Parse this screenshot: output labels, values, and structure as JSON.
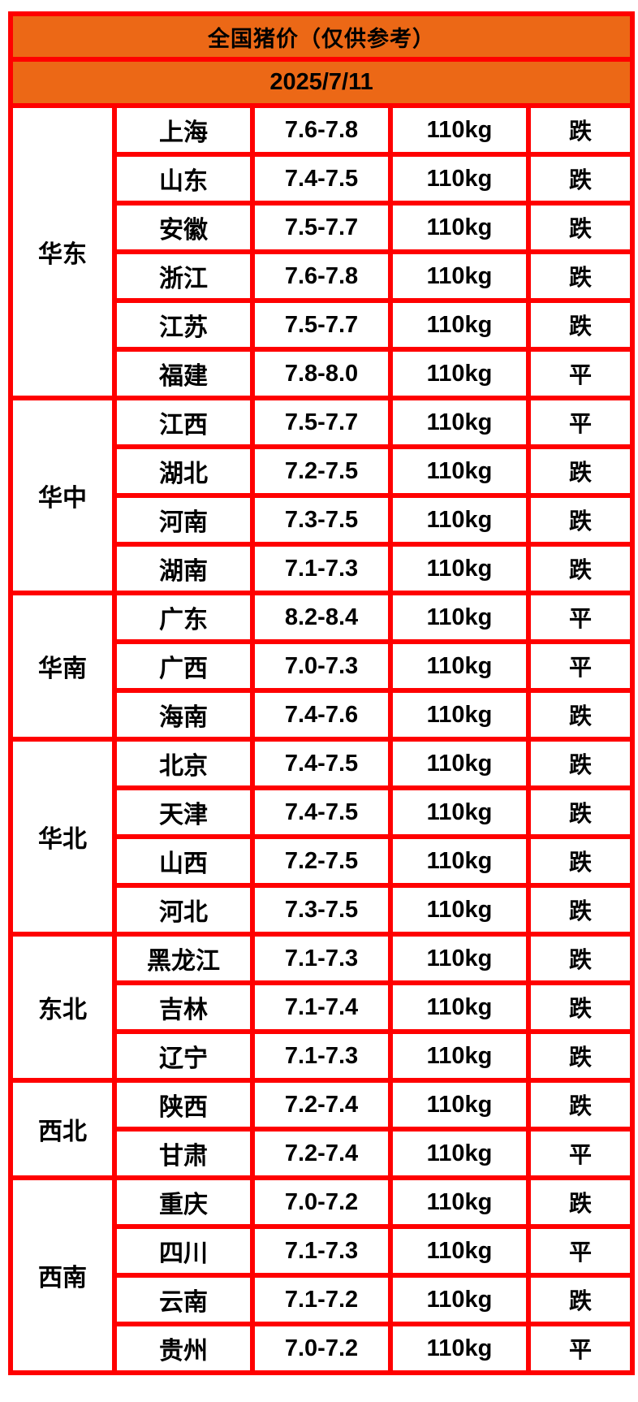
{
  "header": {
    "title": "全国猪价（仅供参考）",
    "date": "2025/7/11"
  },
  "colors": {
    "grid_red": "#ff0000",
    "header_orange": "#ec6816",
    "fall_green": "#2fcb2f",
    "flat_black": "#000000"
  },
  "status_labels": {
    "fall": "跌",
    "flat": "平"
  },
  "regions": [
    {
      "name": "华东",
      "rows": [
        {
          "province": "上海",
          "price": "7.6-7.8",
          "weight": "110kg",
          "status": "跌",
          "trend": "fall"
        },
        {
          "province": "山东",
          "price": "7.4-7.5",
          "weight": "110kg",
          "status": "跌",
          "trend": "fall"
        },
        {
          "province": "安徽",
          "price": "7.5-7.7",
          "weight": "110kg",
          "status": "跌",
          "trend": "fall"
        },
        {
          "province": "浙江",
          "price": "7.6-7.8",
          "weight": "110kg",
          "status": "跌",
          "trend": "fall"
        },
        {
          "province": "江苏",
          "price": "7.5-7.7",
          "weight": "110kg",
          "status": "跌",
          "trend": "fall"
        },
        {
          "province": "福建",
          "price": "7.8-8.0",
          "weight": "110kg",
          "status": "平",
          "trend": "flat"
        }
      ]
    },
    {
      "name": "华中",
      "rows": [
        {
          "province": "江西",
          "price": "7.5-7.7",
          "weight": "110kg",
          "status": "平",
          "trend": "flat"
        },
        {
          "province": "湖北",
          "price": "7.2-7.5",
          "weight": "110kg",
          "status": "跌",
          "trend": "fall"
        },
        {
          "province": "河南",
          "price": "7.3-7.5",
          "weight": "110kg",
          "status": "跌",
          "trend": "fall"
        },
        {
          "province": "湖南",
          "price": "7.1-7.3",
          "weight": "110kg",
          "status": "跌",
          "trend": "fall"
        }
      ]
    },
    {
      "name": "华南",
      "rows": [
        {
          "province": "广东",
          "price": "8.2-8.4",
          "weight": "110kg",
          "status": "平",
          "trend": "flat"
        },
        {
          "province": "广西",
          "price": "7.0-7.3",
          "weight": "110kg",
          "status": "平",
          "trend": "flat"
        },
        {
          "province": "海南",
          "price": "7.4-7.6",
          "weight": "110kg",
          "status": "跌",
          "trend": "fall"
        }
      ]
    },
    {
      "name": "华北",
      "rows": [
        {
          "province": "北京",
          "price": "7.4-7.5",
          "weight": "110kg",
          "status": "跌",
          "trend": "fall"
        },
        {
          "province": "天津",
          "price": "7.4-7.5",
          "weight": "110kg",
          "status": "跌",
          "trend": "fall"
        },
        {
          "province": "山西",
          "price": "7.2-7.5",
          "weight": "110kg",
          "status": "跌",
          "trend": "fall"
        },
        {
          "province": "河北",
          "price": "7.3-7.5",
          "weight": "110kg",
          "status": "跌",
          "trend": "fall"
        }
      ]
    },
    {
      "name": "东北",
      "rows": [
        {
          "province": "黑龙江",
          "price": "7.1-7.3",
          "weight": "110kg",
          "status": "跌",
          "trend": "fall"
        },
        {
          "province": "吉林",
          "price": "7.1-7.4",
          "weight": "110kg",
          "status": "跌",
          "trend": "fall"
        },
        {
          "province": "辽宁",
          "price": "7.1-7.3",
          "weight": "110kg",
          "status": "跌",
          "trend": "fall"
        }
      ]
    },
    {
      "name": "西北",
      "rows": [
        {
          "province": "陕西",
          "price": "7.2-7.4",
          "weight": "110kg",
          "status": "跌",
          "trend": "fall"
        },
        {
          "province": "甘肃",
          "price": "7.2-7.4",
          "weight": "110kg",
          "status": "平",
          "trend": "flat"
        }
      ]
    },
    {
      "name": "西南",
      "rows": [
        {
          "province": "重庆",
          "price": "7.0-7.2",
          "weight": "110kg",
          "status": "跌",
          "trend": "fall"
        },
        {
          "province": "四川",
          "price": "7.1-7.3",
          "weight": "110kg",
          "status": "平",
          "trend": "flat"
        },
        {
          "province": "云南",
          "price": "7.1-7.2",
          "weight": "110kg",
          "status": "跌",
          "trend": "fall"
        },
        {
          "province": "贵州",
          "price": "7.0-7.2",
          "weight": "110kg",
          "status": "平",
          "trend": "flat"
        }
      ]
    }
  ]
}
